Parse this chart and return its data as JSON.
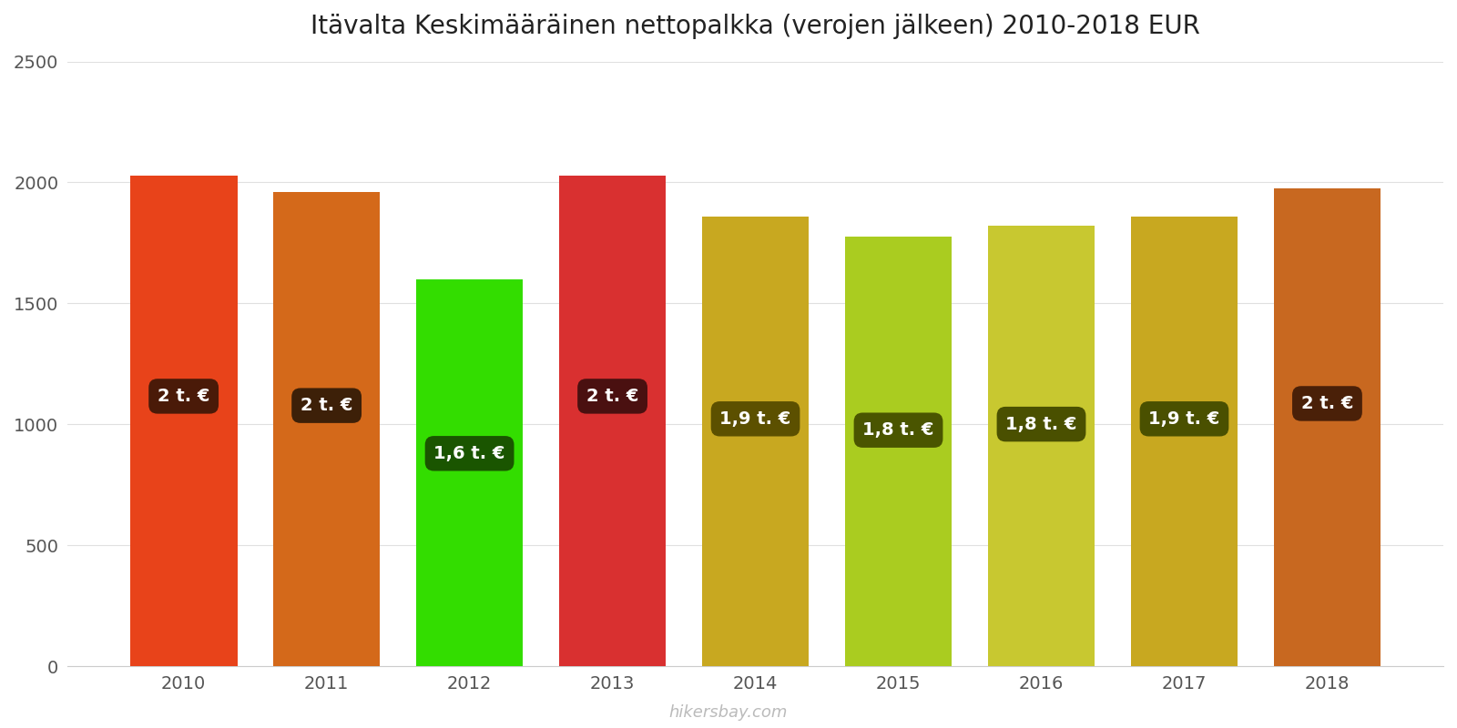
{
  "title": "Itävalta Keskimääräinen nettopalkka (verojen jälkeen) 2010-2018 EUR",
  "years": [
    2010,
    2011,
    2012,
    2013,
    2014,
    2015,
    2016,
    2017,
    2018
  ],
  "values": [
    2030,
    1960,
    1600,
    2030,
    1860,
    1775,
    1820,
    1860,
    1975
  ],
  "bar_colors": [
    "#E8431A",
    "#D4691A",
    "#33DD00",
    "#D93030",
    "#C8A820",
    "#AACC20",
    "#C8C830",
    "#C8A820",
    "#C86820"
  ],
  "label_texts": [
    "2 t. €",
    "2 t. €",
    "1,6 t. €",
    "2 t. €",
    "1,9 t. €",
    "1,8 t. €",
    "1,8 t. €",
    "1,9 t. €",
    "2 t. €"
  ],
  "label_bg_colors": [
    "#4A1A08",
    "#3D2008",
    "#1A5500",
    "#4A1010",
    "#5C5000",
    "#4A5500",
    "#4A5000",
    "#4A5000",
    "#4A2008"
  ],
  "ylim": [
    0,
    2500
  ],
  "yticks": [
    0,
    500,
    1000,
    1500,
    2000,
    2500
  ],
  "watermark": "hikersbay.com",
  "background_color": "#ffffff",
  "grid_color": "#e0e0e0",
  "bar_width": 0.75
}
